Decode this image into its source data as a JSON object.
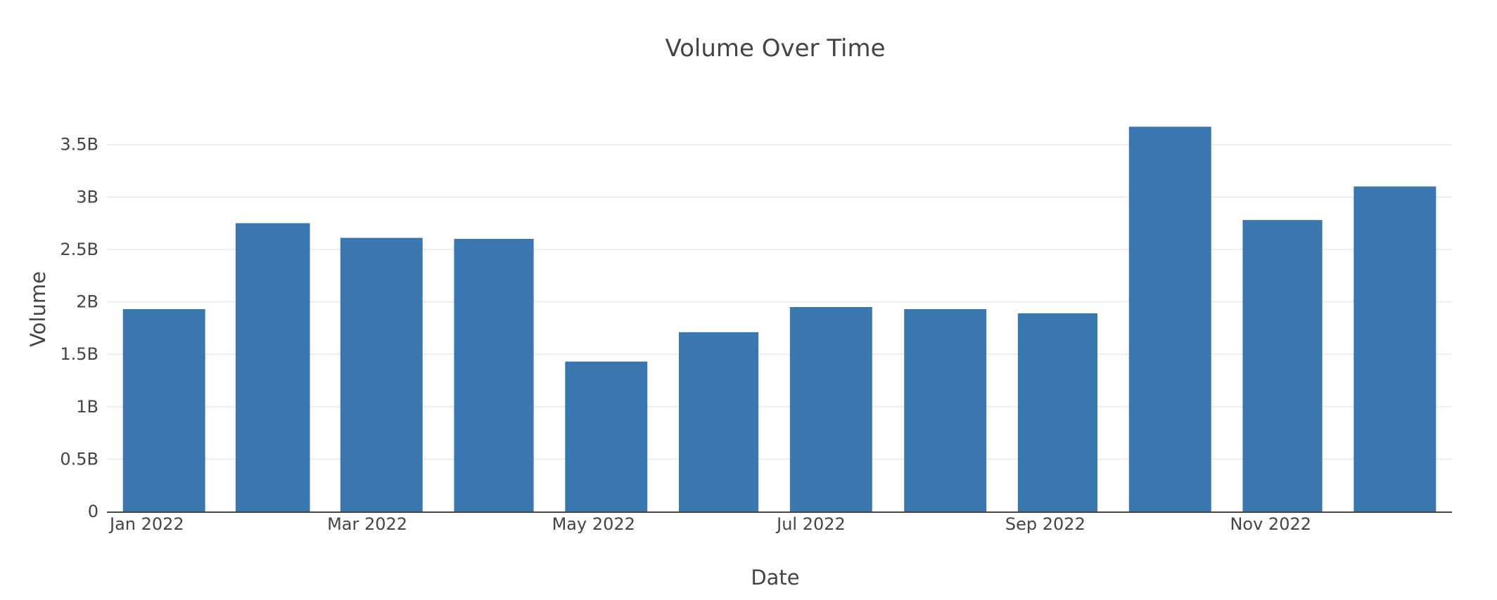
{
  "chart_data": {
    "type": "bar",
    "title": "Volume Over Time",
    "xlabel": "Date",
    "ylabel": "Volume",
    "categories": [
      "2022-01",
      "2022-02",
      "2022-03",
      "2022-04",
      "2022-05",
      "2022-06",
      "2022-07",
      "2022-08",
      "2022-09",
      "2022-10",
      "2022-11",
      "2022-12"
    ],
    "values": [
      1930000000,
      2750000000,
      2610000000,
      2600000000,
      1430000000,
      1710000000,
      1950000000,
      1930000000,
      1890000000,
      3670000000,
      2780000000,
      3100000000
    ],
    "x_tick_labels": [
      "Jan 2022",
      "Mar 2022",
      "May 2022",
      "Jul 2022",
      "Sep 2022",
      "Nov 2022"
    ],
    "y_ticks": [
      0,
      500000000,
      1000000000,
      1500000000,
      2000000000,
      2500000000,
      3000000000,
      3500000000
    ],
    "y_tick_labels": [
      "0",
      "0.5B",
      "1B",
      "1.5B",
      "2B",
      "2.5B",
      "3B",
      "3.5B"
    ],
    "ylim": [
      0,
      3860000000
    ],
    "grid": true,
    "bar_color": "#3a76af"
  }
}
